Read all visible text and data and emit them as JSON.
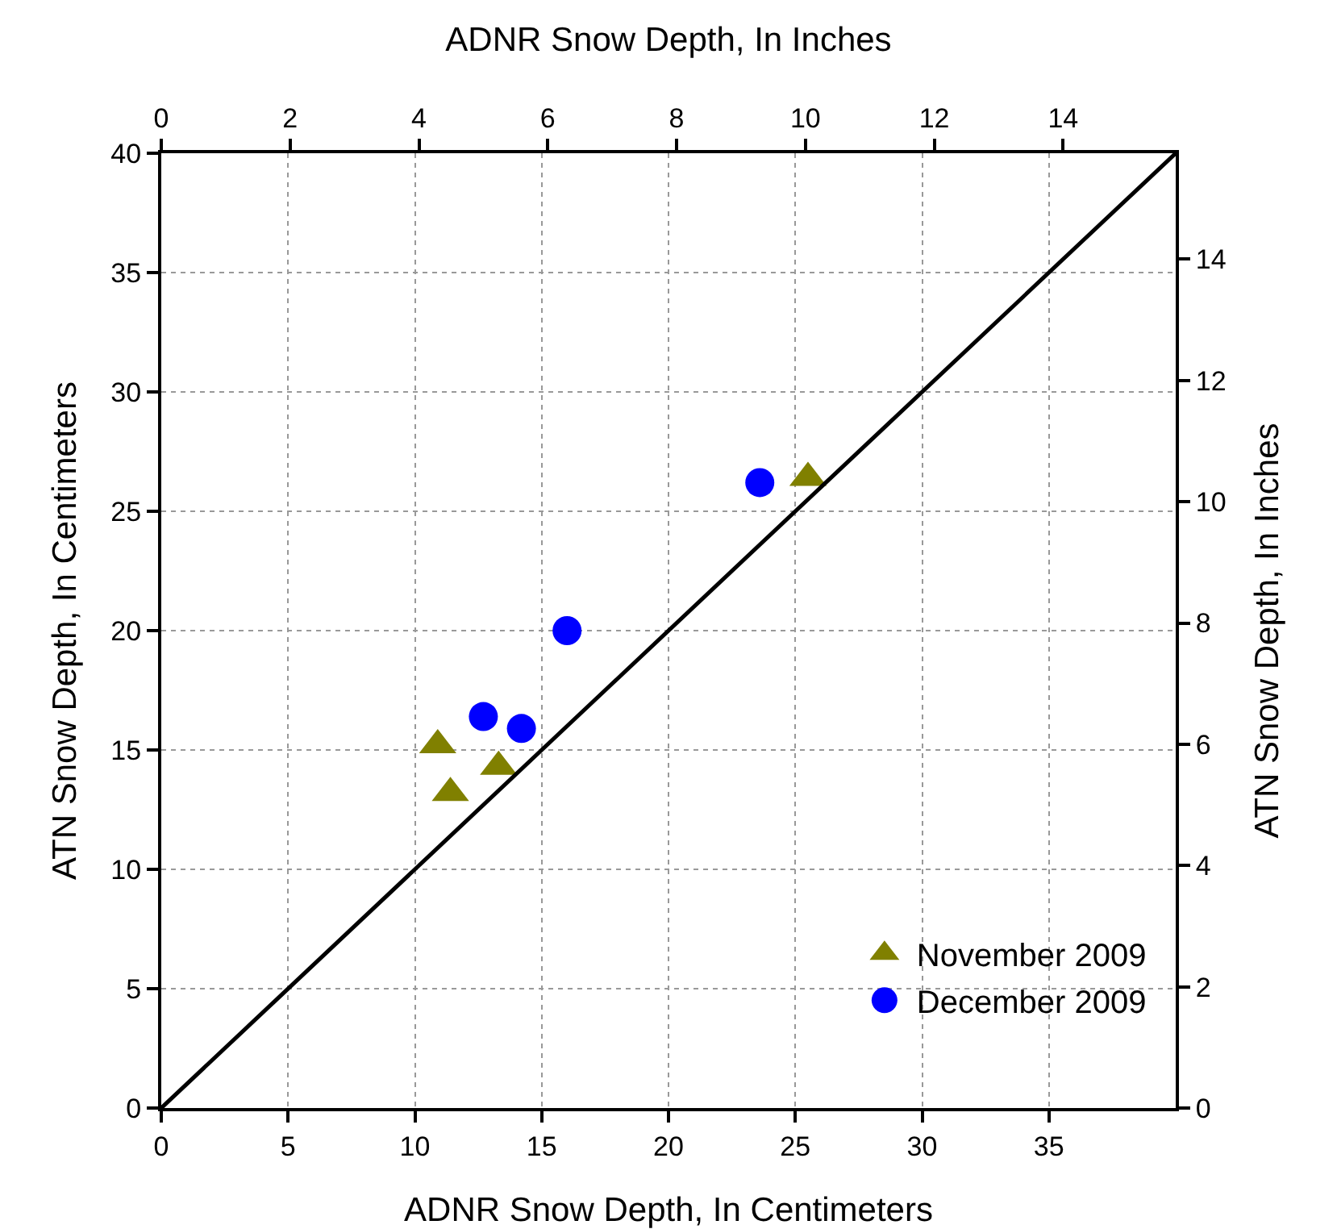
{
  "chart_data": {
    "type": "scatter",
    "xlabel": "ADNR Snow Depth, In Centimeters",
    "ylabel": "ATN Snow Depth, In Centimeters",
    "x2label": "ADNR Snow Depth, In Inches",
    "y2label": "ATN Snow Depth, In Inches",
    "xlim": [
      0,
      40
    ],
    "xticks": [
      0,
      5,
      10,
      15,
      20,
      25,
      30,
      35
    ],
    "ylim": [
      0,
      40
    ],
    "yticks": [
      0,
      5,
      10,
      15,
      20,
      25,
      30,
      35,
      40
    ],
    "x2lim": [
      0,
      15.748
    ],
    "x2ticks": [
      0,
      2,
      4,
      6,
      8,
      10,
      12,
      14
    ],
    "y2lim": [
      0,
      15.748
    ],
    "y2ticks": [
      0,
      2,
      4,
      6,
      8,
      10,
      12,
      14
    ],
    "grid": true,
    "legend": "bottom right",
    "series": [
      {
        "name": "November 2009",
        "marker": "triangle",
        "color": "#808000",
        "x": [
          10.9,
          11.4,
          13.3,
          25.5
        ],
        "values": [
          15.2,
          13.2,
          14.3,
          26.4
        ]
      },
      {
        "name": "December 2009",
        "marker": "circle",
        "color": "#0000ff",
        "x": [
          12.7,
          14.2,
          16.0,
          23.6
        ],
        "values": [
          16.4,
          15.9,
          20.0,
          26.2
        ]
      },
      {
        "type": "line",
        "color": "#000000",
        "line_style": "solid",
        "marker": "none",
        "x": [
          0,
          40
        ],
        "values": [
          0,
          40
        ]
      }
    ]
  }
}
